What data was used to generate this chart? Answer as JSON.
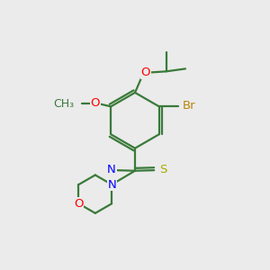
{
  "bg_color": "#ebebeb",
  "bond_color": "#3a7a3a",
  "bond_width": 1.6,
  "atom_colors": {
    "Br": "#b8860b",
    "O": "#ff0000",
    "N": "#0000ff",
    "S": "#aaaa00",
    "C": "#3a7a3a"
  },
  "font_size": 9.5
}
